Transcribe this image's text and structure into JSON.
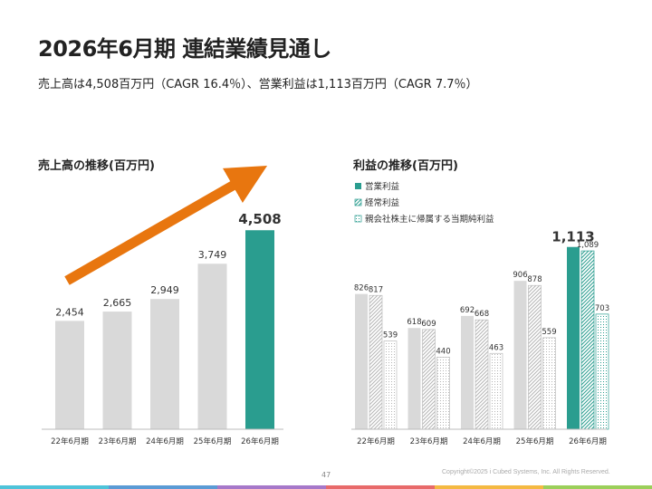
{
  "page": {
    "title": "2026年6月期 連結業績見通し",
    "subtitle": "売上高は4,508百万円（CAGR 16.4％）、営業利益は1,113百万円（CAGR 7.7％）",
    "page_number": "47",
    "copyright": "Copyright©2025 i Cubed Systems, Inc. All Rights Reserved.",
    "footer_colors": [
      "#4fc3d9",
      "#5b9bd5",
      "#a678c9",
      "#e86a6a",
      "#f4b942",
      "#9bcf5a"
    ]
  },
  "chart_data": [
    {
      "type": "bar",
      "title": "売上高の推移(百万円)",
      "categories": [
        "22年6月期",
        "23年6月期",
        "24年6月期",
        "25年6月期",
        "26年6月期"
      ],
      "values": [
        2454,
        2665,
        2949,
        3749,
        4508
      ],
      "value_labels": [
        "2,454",
        "2,665",
        "2,949",
        "3,749",
        "4,508"
      ],
      "colors": {
        "actual": "#d9d9d9",
        "forecast": "#2a9d8f"
      },
      "ylim": [
        0,
        4800
      ],
      "annotation": "upward-trend-arrow",
      "arrow_color": "#e8760f"
    },
    {
      "type": "bar",
      "title": "利益の推移(百万円)",
      "categories": [
        "22年6月期",
        "23年6月期",
        "24年6月期",
        "25年6月期",
        "26年6月期"
      ],
      "series": [
        {
          "name": "営業利益",
          "values": [
            826,
            618,
            692,
            906,
            1113
          ],
          "labels": [
            "826",
            "618",
            "692",
            "906",
            "1,113"
          ],
          "pattern": "solid"
        },
        {
          "name": "経常利益",
          "values": [
            817,
            609,
            668,
            878,
            1089
          ],
          "labels": [
            "817",
            "609",
            "668",
            "878",
            "1,089"
          ],
          "pattern": "diagonal"
        },
        {
          "name": "親会社株主に帰属する当期純利益",
          "values": [
            539,
            440,
            463,
            559,
            703
          ],
          "labels": [
            "539",
            "440",
            "463",
            "559",
            "703"
          ],
          "pattern": "dotted"
        }
      ],
      "colors": {
        "actual": "#d9d9d9",
        "forecast": "#2a9d8f"
      },
      "ylim": [
        0,
        1200
      ],
      "legend_position": "top-left"
    }
  ]
}
